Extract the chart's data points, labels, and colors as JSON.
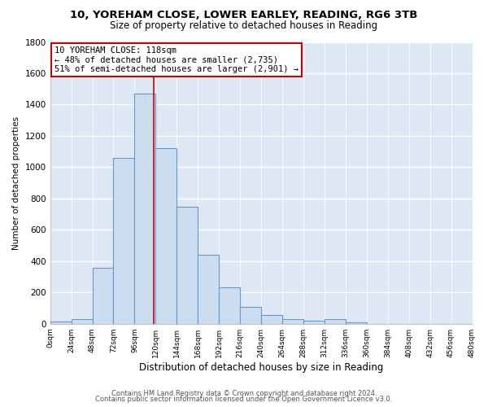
{
  "title": "10, YOREHAM CLOSE, LOWER EARLEY, READING, RG6 3TB",
  "subtitle": "Size of property relative to detached houses in Reading",
  "xlabel": "Distribution of detached houses by size in Reading",
  "ylabel": "Number of detached properties",
  "bar_color": "#ccddf0",
  "bar_edge_color": "#6699cc",
  "bg_color": "#ffffff",
  "plot_bg_color": "#dde8f4",
  "grid_color": "#ffffff",
  "bin_edges": [
    0,
    24,
    48,
    72,
    96,
    120,
    144,
    168,
    192,
    216,
    240,
    264,
    288,
    312,
    336,
    360,
    384,
    408,
    432,
    456,
    480
  ],
  "bin_counts": [
    15,
    30,
    355,
    1060,
    1470,
    1120,
    745,
    440,
    230,
    110,
    55,
    30,
    20,
    30,
    10,
    0,
    0,
    0,
    0,
    0
  ],
  "property_size": 118,
  "vline_color": "#cc0000",
  "annotation_line1": "10 YOREHAM CLOSE: 118sqm",
  "annotation_line2": "← 48% of detached houses are smaller (2,735)",
  "annotation_line3": "51% of semi-detached houses are larger (2,901) →",
  "annotation_box_color": "#ffffff",
  "annotation_box_edge": "#cc0000",
  "ylim": [
    0,
    1800
  ],
  "yticks": [
    0,
    200,
    400,
    600,
    800,
    1000,
    1200,
    1400,
    1600,
    1800
  ],
  "footer_line1": "Contains HM Land Registry data © Crown copyright and database right 2024.",
  "footer_line2": "Contains public sector information licensed under the Open Government Licence v3.0.",
  "tick_labels": [
    "0sqm",
    "24sqm",
    "48sqm",
    "72sqm",
    "96sqm",
    "120sqm",
    "144sqm",
    "168sqm",
    "192sqm",
    "216sqm",
    "240sqm",
    "264sqm",
    "288sqm",
    "312sqm",
    "336sqm",
    "360sqm",
    "384sqm",
    "408sqm",
    "432sqm",
    "456sqm",
    "480sqm"
  ]
}
